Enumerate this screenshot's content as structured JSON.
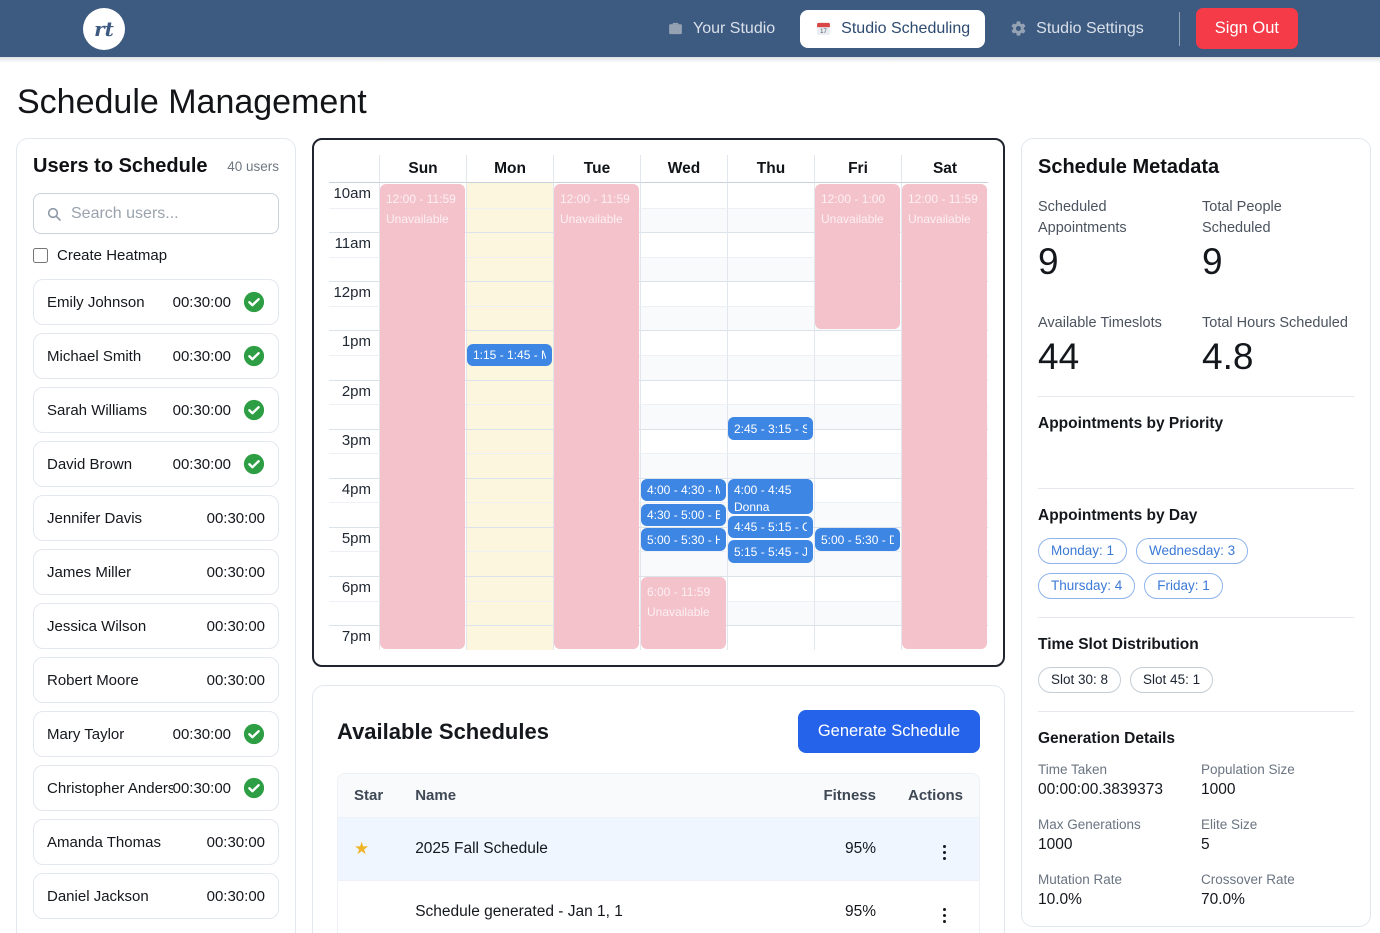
{
  "navbar": {
    "logo_text": "rt",
    "items": [
      {
        "label": "Your Studio",
        "icon": "briefcase-icon",
        "active": false
      },
      {
        "label": "Studio Scheduling",
        "icon": "calendar-icon",
        "active": true
      },
      {
        "label": "Studio Settings",
        "icon": "gear-icon",
        "active": false
      }
    ],
    "sign_out_label": "Sign Out"
  },
  "page_title": "Schedule Management",
  "users_panel": {
    "title": "Users to Schedule",
    "count_label": "40 users",
    "search_placeholder": "Search users...",
    "heatmap_label": "Create Heatmap",
    "users": [
      {
        "name": "Emily Johnson",
        "time": "00:30:00",
        "scheduled": true
      },
      {
        "name": "Michael Smith",
        "time": "00:30:00",
        "scheduled": true
      },
      {
        "name": "Sarah Williams",
        "time": "00:30:00",
        "scheduled": true
      },
      {
        "name": "David Brown",
        "time": "00:30:00",
        "scheduled": true
      },
      {
        "name": "Jennifer Davis",
        "time": "00:30:00",
        "scheduled": false
      },
      {
        "name": "James Miller",
        "time": "00:30:00",
        "scheduled": false
      },
      {
        "name": "Jessica Wilson",
        "time": "00:30:00",
        "scheduled": false
      },
      {
        "name": "Robert Moore",
        "time": "00:30:00",
        "scheduled": false
      },
      {
        "name": "Mary Taylor",
        "time": "00:30:00",
        "scheduled": true
      },
      {
        "name": "Christopher Anderson",
        "time": "00:30:00",
        "scheduled": true
      },
      {
        "name": "Amanda Thomas",
        "time": "00:30:00",
        "scheduled": false
      },
      {
        "name": "Daniel Jackson",
        "time": "00:30:00",
        "scheduled": false
      }
    ]
  },
  "calendar": {
    "days": [
      "Sun",
      "Mon",
      "Tue",
      "Wed",
      "Thu",
      "Fri",
      "Sat"
    ],
    "time_labels": [
      "10am",
      "11am",
      "12pm",
      "1pm",
      "2pm",
      "3pm",
      "4pm",
      "5pm",
      "6pm",
      "7pm"
    ],
    "highlighted_day": "Mon",
    "blocks": [
      {
        "day": 0,
        "start": 0,
        "end": 19,
        "type": "unavailable",
        "lines": [
          "12:00 - 11:59",
          "Unavailable"
        ]
      },
      {
        "day": 2,
        "start": 0,
        "end": 19,
        "type": "unavailable",
        "lines": [
          "12:00 - 11:59",
          "Unavailable"
        ]
      },
      {
        "day": 5,
        "start": 0,
        "end": 6,
        "type": "unavailable",
        "lines": [
          "12:00 - 1:00",
          "Unavailable"
        ]
      },
      {
        "day": 6,
        "start": 0,
        "end": 19,
        "type": "unavailable",
        "lines": [
          "12:00 - 11:59",
          "Unavailable"
        ]
      },
      {
        "day": 3,
        "start": 16,
        "end": 19,
        "type": "unavailable",
        "lines": [
          "6:00 - 11:59",
          "Unavailable"
        ]
      },
      {
        "day": 1,
        "start": 6.5,
        "end": 7.5,
        "type": "appointment",
        "lines": [
          "1:15 - 1:45 - M"
        ]
      },
      {
        "day": 4,
        "start": 9.5,
        "end": 10.5,
        "type": "appointment",
        "lines": [
          "2:45 - 3:15 - S"
        ]
      },
      {
        "day": 3,
        "start": 12,
        "end": 13,
        "type": "appointment",
        "lines": [
          "4:00 - 4:30 - M"
        ]
      },
      {
        "day": 3,
        "start": 13,
        "end": 14,
        "type": "appointment",
        "lines": [
          "4:30 - 5:00 - E"
        ]
      },
      {
        "day": 3,
        "start": 14,
        "end": 15,
        "type": "appointment",
        "lines": [
          "5:00 - 5:30 - H"
        ]
      },
      {
        "day": 4,
        "start": 12,
        "end": 13.5,
        "type": "appointment",
        "lines": [
          "4:00 - 4:45",
          "Donna"
        ]
      },
      {
        "day": 4,
        "start": 13.5,
        "end": 14.5,
        "type": "appointment",
        "lines": [
          "4:45 - 5:15 - C"
        ]
      },
      {
        "day": 4,
        "start": 14.5,
        "end": 15.5,
        "type": "appointment",
        "lines": [
          "5:15 - 5:45 - J"
        ]
      },
      {
        "day": 5,
        "start": 14,
        "end": 15,
        "type": "appointment",
        "lines": [
          "5:00 - 5:30 - D"
        ]
      }
    ]
  },
  "metadata_panel": {
    "title": "Schedule Metadata",
    "stats": [
      {
        "label": "Scheduled Appointments",
        "value": "9"
      },
      {
        "label": "Total People Scheduled",
        "value": "9"
      },
      {
        "label": "Available Timeslots",
        "value": "44"
      },
      {
        "label": "Total Hours Scheduled",
        "value": "4.8"
      }
    ],
    "priority_section_title": "Appointments by Priority",
    "by_day_section": {
      "title": "Appointments by Day",
      "pills": [
        "Monday: 1",
        "Wednesday: 3",
        "Thursday: 4",
        "Friday: 1"
      ]
    },
    "slot_section": {
      "title": "Time Slot Distribution",
      "pills": [
        "Slot 30: 8",
        "Slot 45: 1"
      ]
    },
    "generation_section": {
      "title": "Generation Details",
      "fields": [
        {
          "label": "Time Taken",
          "value": "00:00:00.3839373"
        },
        {
          "label": "Population Size",
          "value": "1000"
        },
        {
          "label": "Max Generations",
          "value": "1000"
        },
        {
          "label": "Elite Size",
          "value": "5"
        },
        {
          "label": "Mutation Rate",
          "value": "10.0%"
        },
        {
          "label": "Crossover Rate",
          "value": "70.0%"
        }
      ]
    }
  },
  "schedules_panel": {
    "title": "Available Schedules",
    "generate_label": "Generate Schedule",
    "columns": [
      "Star",
      "Name",
      "Fitness",
      "Actions"
    ],
    "rows": [
      {
        "starred": true,
        "name": "2025 Fall Schedule",
        "fitness": "95%",
        "highlighted": true
      },
      {
        "starred": false,
        "name": "Schedule generated - Jan 1, 1",
        "fitness": "95%",
        "highlighted": false
      }
    ]
  },
  "colors": {
    "navbar": "#3d5a80",
    "sign_out_red": "#f43b47",
    "accent_blue": "#2563eb",
    "event_blue": "#3e86e3",
    "unavailable_pink": "#f4c2cb",
    "monday_cream": "#fdf6de",
    "star_gold": "#f0b429",
    "check_green": "#2e9e44",
    "day_pill_blue": "#3b79d6"
  }
}
